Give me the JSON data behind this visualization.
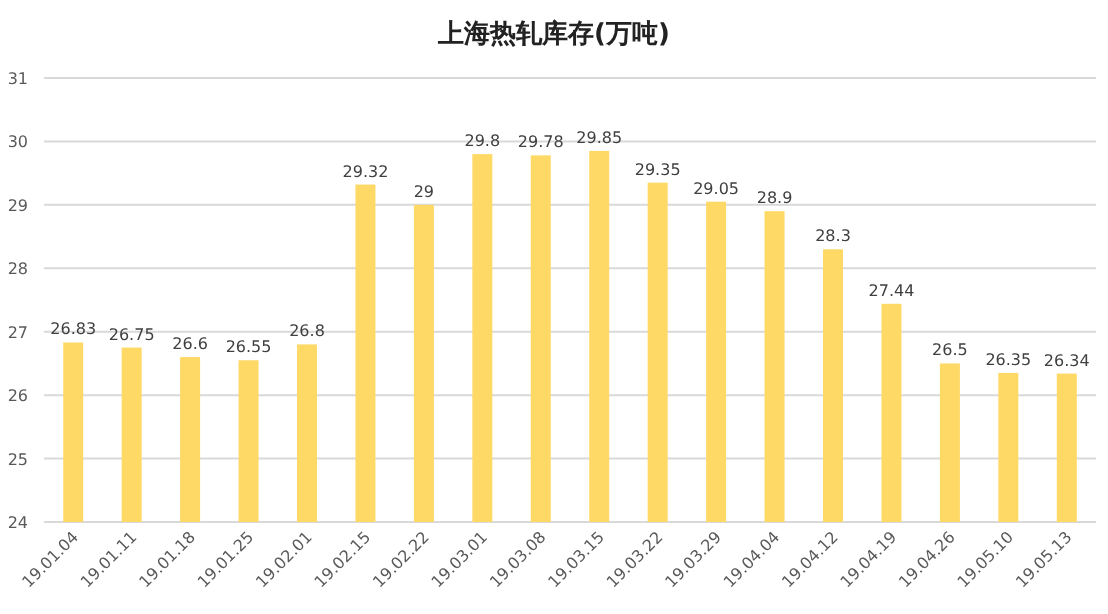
{
  "chart_data": {
    "type": "bar",
    "title": "上海热轧库存(万吨)",
    "categories": [
      "19.01.04",
      "19.01.11",
      "19.01.18",
      "19.01.25",
      "19.02.01",
      "19.02.15",
      "19.02.22",
      "19.03.01",
      "19.03.08",
      "19.03.15",
      "19.03.22",
      "19.03.29",
      "19.04.04",
      "19.04.12",
      "19.04.19",
      "19.04.26",
      "19.05.10",
      "19.05.13"
    ],
    "values": [
      26.83,
      26.75,
      26.6,
      26.55,
      26.8,
      29.32,
      29,
      29.8,
      29.78,
      29.85,
      29.35,
      29.05,
      28.9,
      28.3,
      27.44,
      26.5,
      26.35,
      26.34
    ],
    "color": "#ffd966",
    "ylim": [
      24,
      31
    ],
    "yticks": [
      24,
      25,
      26,
      27,
      28,
      29,
      30,
      31
    ],
    "grid": "y",
    "data_labels": true
  }
}
